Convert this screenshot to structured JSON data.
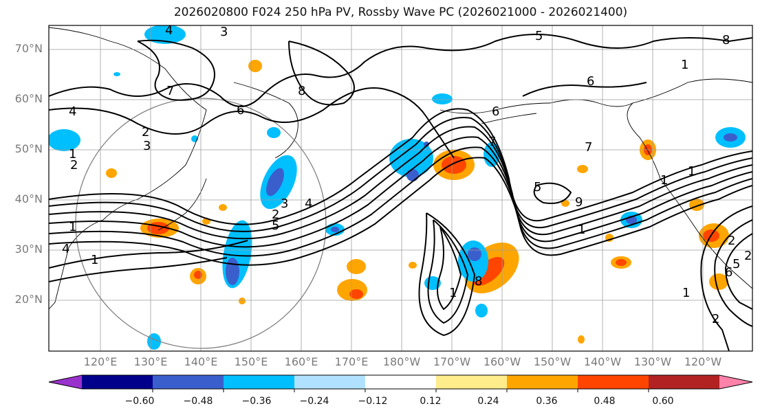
{
  "title": "2026020800 F024 250 hPa PV, Rossby Wave PC (2026021000 - 2026021400)",
  "lat_labels": [
    "70°N",
    "60°N",
    "50°N",
    "40°N",
    "30°N",
    "20°N"
  ],
  "lon_labels": [
    "120°E",
    "130°E",
    "140°E",
    "150°E",
    "160°E",
    "170°E",
    "180°W",
    "170°W",
    "160°W",
    "150°W",
    "140°W",
    "130°W",
    "120°W"
  ],
  "colorbar": {
    "colors": [
      "#9932cc",
      "#00008b",
      "#3a5fcd",
      "#00bfff",
      "#b0e2ff",
      "#ffffff",
      "#ffec8b",
      "#ffa500",
      "#ff4500",
      "#b22222",
      "#ff82ab"
    ],
    "tick_labels": [
      "−0.60",
      "−0.48",
      "−0.36",
      "−0.24",
      "−0.12",
      "0.12",
      "0.24",
      "0.36",
      "0.48",
      "0.60"
    ]
  },
  "contour_labels": [
    "4",
    "3",
    "5",
    "8",
    "1",
    "6",
    "7",
    "8",
    "6",
    "4",
    "2",
    "3",
    "1",
    "2",
    "1",
    "4",
    "1",
    "4",
    "3",
    "2",
    "5",
    "6",
    "7",
    "7",
    "5",
    "9",
    "1",
    "8",
    "1",
    "1",
    "1",
    "2",
    "2",
    "5",
    "6",
    "1",
    "2"
  ],
  "colors": {
    "line": "#000000",
    "grid": "#9e9e9e",
    "circle": "#808080"
  }
}
